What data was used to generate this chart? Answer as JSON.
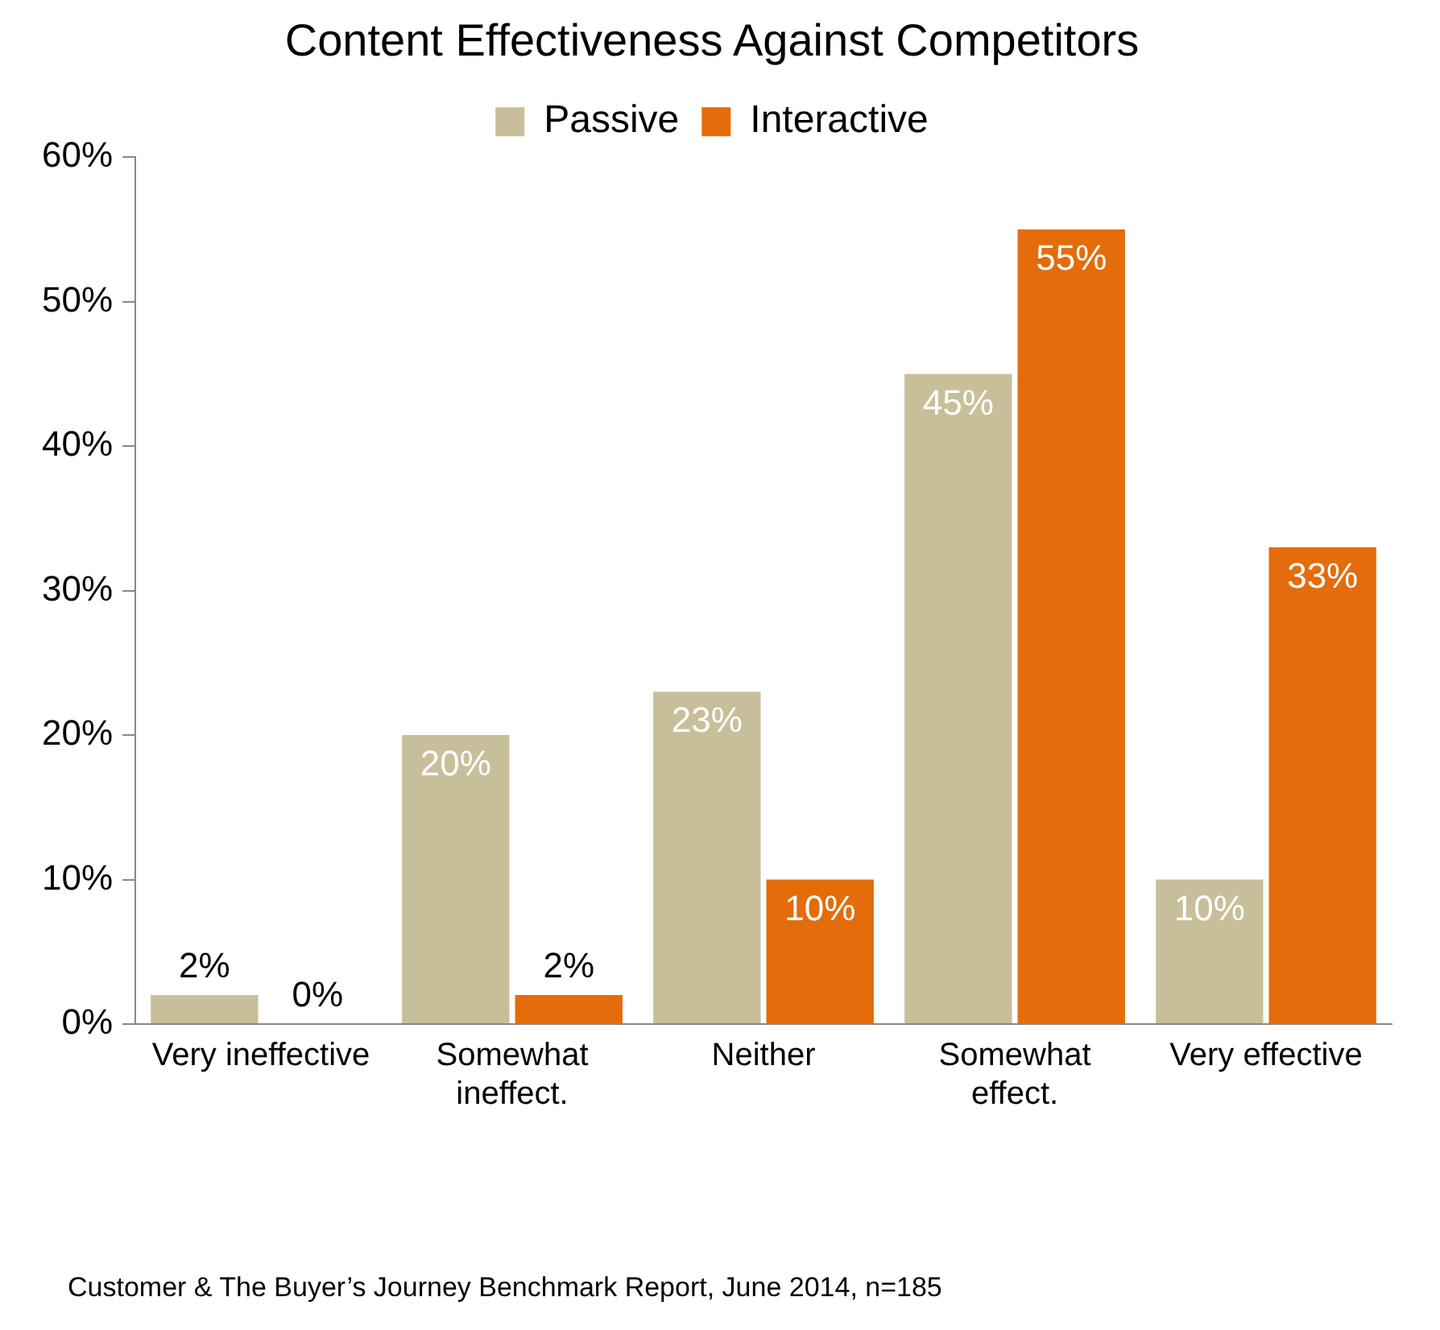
{
  "chart_data": {
    "type": "bar",
    "title": "Content Effectiveness Against Competitors",
    "categories": [
      "Very ineffective",
      "Somewhat ineffect.",
      "Neither",
      "Somewhat effect.",
      "Very effective"
    ],
    "series": [
      {
        "name": "Passive",
        "color": "#c8bf9a",
        "values": [
          2,
          20,
          23,
          45,
          10
        ]
      },
      {
        "name": "Interactive",
        "color": "#e46c0a",
        "values": [
          0,
          2,
          10,
          55,
          33
        ]
      }
    ],
    "ylim": [
      0,
      60
    ],
    "yticks": [
      {
        "value": 0,
        "label": "0%"
      },
      {
        "value": 10,
        "label": "10%"
      },
      {
        "value": 20,
        "label": "20%"
      },
      {
        "value": 30,
        "label": "30%"
      },
      {
        "value": 40,
        "label": "40%"
      },
      {
        "value": 50,
        "label": "50%"
      },
      {
        "value": 60,
        "label": "60%"
      }
    ],
    "value_labels": [
      [
        "2%",
        "20%",
        "23%",
        "45%",
        "10%"
      ],
      [
        "0%",
        "2%",
        "10%",
        "55%",
        "33%"
      ]
    ],
    "grid": false,
    "legend": "top",
    "annotations": [
      "Customer & The Buyer’s Journey Benchmark Report, June 2014, n=185"
    ]
  }
}
